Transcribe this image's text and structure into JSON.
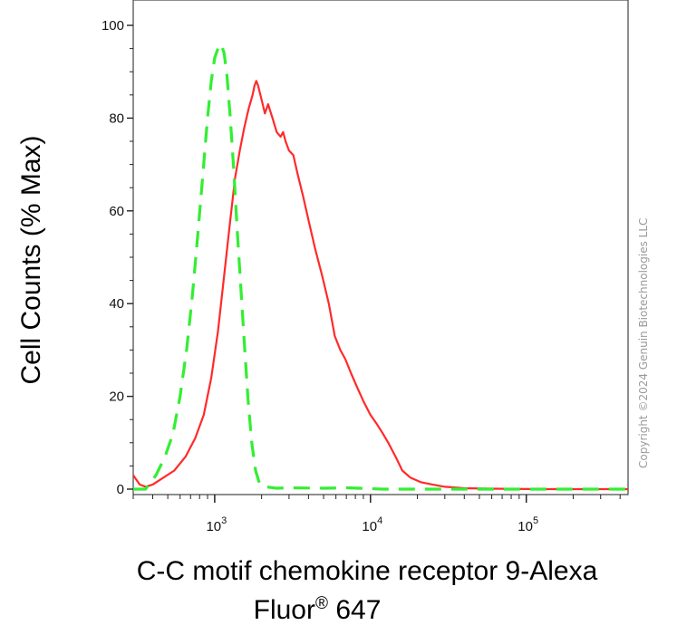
{
  "chart_data": {
    "type": "line",
    "ylabel": "Cell Counts (% Max)",
    "xlabel_main": "C-C motif chemokine receptor 9-Alexa",
    "xlabel_sub_prefix": "Fluor",
    "xlabel_sub_sup": "®",
    "xlabel_sub_suffix": " 647",
    "copyright": "Copyright ©2024 Genuin Biotechnologies LLC",
    "xscale": "log",
    "xlim": [
      300,
      450000
    ],
    "ylim": [
      0,
      100
    ],
    "grid": false,
    "legend": "none",
    "y_ticks": [
      {
        "value": 0,
        "label": "0"
      },
      {
        "value": 20,
        "label": "20"
      },
      {
        "value": 40,
        "label": "40"
      },
      {
        "value": 60,
        "label": "60"
      },
      {
        "value": 80,
        "label": "80"
      },
      {
        "value": 100,
        "label": "100"
      }
    ],
    "x_ticks": [
      {
        "value": 1000,
        "base": "10",
        "exp": "3"
      },
      {
        "value": 10000,
        "base": "10",
        "exp": "4"
      },
      {
        "value": 100000,
        "base": "10",
        "exp": "5"
      }
    ],
    "series": [
      {
        "color": "#ff2a2a",
        "style": "solid",
        "points": [
          [
            300,
            3
          ],
          [
            330,
            1
          ],
          [
            360,
            0.5
          ],
          [
            400,
            1
          ],
          [
            470,
            2.5
          ],
          [
            550,
            4
          ],
          [
            650,
            7
          ],
          [
            750,
            11
          ],
          [
            850,
            16
          ],
          [
            950,
            24
          ],
          [
            1050,
            34
          ],
          [
            1150,
            46
          ],
          [
            1250,
            57
          ],
          [
            1350,
            67
          ],
          [
            1450,
            73
          ],
          [
            1550,
            78
          ],
          [
            1650,
            82
          ],
          [
            1750,
            85
          ],
          [
            1800,
            87
          ],
          [
            1850,
            88
          ],
          [
            1900,
            87
          ],
          [
            2000,
            84
          ],
          [
            2100,
            81
          ],
          [
            2200,
            83
          ],
          [
            2350,
            80
          ],
          [
            2500,
            77
          ],
          [
            2650,
            76
          ],
          [
            2750,
            77
          ],
          [
            2850,
            75
          ],
          [
            3000,
            73
          ],
          [
            3200,
            72
          ],
          [
            3400,
            68
          ],
          [
            3700,
            63
          ],
          [
            4000,
            58
          ],
          [
            4400,
            52
          ],
          [
            4900,
            46
          ],
          [
            5400,
            40
          ],
          [
            5900,
            33
          ],
          [
            6400,
            30
          ],
          [
            6900,
            28
          ],
          [
            7500,
            25
          ],
          [
            8200,
            22
          ],
          [
            9000,
            19
          ],
          [
            10000,
            16
          ],
          [
            11000,
            14
          ],
          [
            12000,
            12
          ],
          [
            13000,
            10
          ],
          [
            14500,
            7
          ],
          [
            16000,
            4
          ],
          [
            18000,
            2.5
          ],
          [
            21000,
            1.5
          ],
          [
            25000,
            1
          ],
          [
            30000,
            0.5
          ],
          [
            40000,
            0.2
          ],
          [
            60000,
            0.1
          ],
          [
            120000,
            0
          ],
          [
            450000,
            0
          ]
        ]
      },
      {
        "color": "#33ee33",
        "style": "dashed",
        "points": [
          [
            300,
            0
          ],
          [
            360,
            0
          ],
          [
            420,
            3
          ],
          [
            480,
            7
          ],
          [
            540,
            12
          ],
          [
            600,
            20
          ],
          [
            660,
            30
          ],
          [
            720,
            42
          ],
          [
            780,
            55
          ],
          [
            840,
            68
          ],
          [
            900,
            80
          ],
          [
            950,
            88
          ],
          [
            1000,
            93
          ],
          [
            1050,
            95
          ],
          [
            1100,
            96
          ],
          [
            1150,
            94
          ],
          [
            1200,
            89
          ],
          [
            1260,
            80
          ],
          [
            1330,
            68
          ],
          [
            1400,
            55
          ],
          [
            1480,
            42
          ],
          [
            1560,
            30
          ],
          [
            1640,
            19
          ],
          [
            1730,
            10
          ],
          [
            1830,
            4
          ],
          [
            1950,
            1
          ],
          [
            2100,
            0.5
          ],
          [
            2500,
            0.2
          ],
          [
            3000,
            0.3
          ],
          [
            5000,
            0.2
          ],
          [
            7000,
            0.3
          ],
          [
            12000,
            0
          ],
          [
            450000,
            0
          ]
        ]
      }
    ]
  }
}
